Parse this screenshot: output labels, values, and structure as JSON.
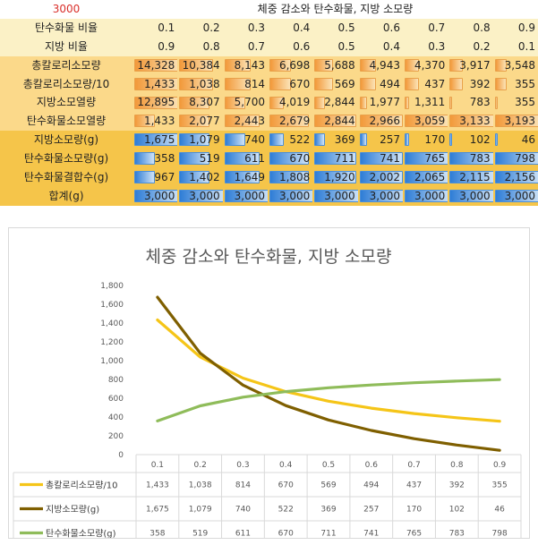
{
  "sheet": {
    "a1_value": "3000",
    "title": "체중 감소와 탄수화물, 지방 소모량",
    "columns": [
      "0.1",
      "0.2",
      "0.3",
      "0.4",
      "0.5",
      "0.6",
      "0.7",
      "0.8",
      "0.9"
    ],
    "rows": [
      {
        "label": "탄수화물 비율",
        "style": "ratio",
        "bars": "none",
        "cells": [
          "0.1",
          "0.2",
          "0.3",
          "0.4",
          "0.5",
          "0.6",
          "0.7",
          "0.8",
          "0.9"
        ]
      },
      {
        "label": "지방 비율",
        "style": "ratio",
        "bars": "none",
        "cells": [
          "0.9",
          "0.8",
          "0.7",
          "0.6",
          "0.5",
          "0.4",
          "0.3",
          "0.2",
          "0.1"
        ]
      },
      {
        "label": "총칼로리소모량",
        "style": "cal",
        "bars": "orange",
        "cells": [
          "14,328",
          "10,384",
          "8,143",
          "6,698",
          "5,688",
          "4,943",
          "4,370",
          "3,917",
          "3,548"
        ],
        "values": [
          14328,
          10384,
          8143,
          6698,
          5688,
          4943,
          4370,
          3917,
          3548
        ]
      },
      {
        "label": "총칼로리소모량/10",
        "style": "cal",
        "bars": "orange",
        "cells": [
          "1,433",
          "1,038",
          "814",
          "670",
          "569",
          "494",
          "437",
          "392",
          "355"
        ],
        "values": [
          1433,
          1038,
          814,
          670,
          569,
          494,
          437,
          392,
          355
        ]
      },
      {
        "label": "지방소모열량",
        "style": "cal",
        "bars": "orange",
        "cells": [
          "12,895",
          "8,307",
          "5,700",
          "4,019",
          "2,844",
          "1,977",
          "1,311",
          "783",
          "355"
        ],
        "values": [
          12895,
          8307,
          5700,
          4019,
          2844,
          1977,
          1311,
          783,
          355
        ]
      },
      {
        "label": "탄수화물소모열량",
        "style": "cal",
        "bars": "orange",
        "cells": [
          "1,433",
          "2,077",
          "2,443",
          "2,679",
          "2,844",
          "2,966",
          "3,059",
          "3,133",
          "3,193"
        ],
        "values": [
          1433,
          2077,
          2443,
          2679,
          2844,
          2966,
          3059,
          3133,
          3193
        ]
      },
      {
        "label": "지방소모량(g)",
        "style": "g",
        "bars": "blue",
        "cells": [
          "1,675",
          "1,079",
          "740",
          "522",
          "369",
          "257",
          "170",
          "102",
          "46"
        ],
        "values": [
          1675,
          1079,
          740,
          522,
          369,
          257,
          170,
          102,
          46
        ]
      },
      {
        "label": "탄수화물소모량(g)",
        "style": "g",
        "bars": "blue",
        "cells": [
          "358",
          "519",
          "611",
          "670",
          "711",
          "741",
          "765",
          "783",
          "798"
        ],
        "values": [
          358,
          519,
          611,
          670,
          711,
          741,
          765,
          783,
          798
        ]
      },
      {
        "label": "탄수화물결합수(g)",
        "style": "g",
        "bars": "blue",
        "cells": [
          "967",
          "1,402",
          "1,649",
          "1,808",
          "1,920",
          "2,002",
          "2,065",
          "2,115",
          "2,156"
        ],
        "values": [
          967,
          1402,
          1649,
          1808,
          1920,
          2002,
          2065,
          2115,
          2156
        ]
      },
      {
        "label": "합계(g)",
        "style": "g",
        "bars": "blue",
        "cells": [
          "3,000",
          "3,000",
          "3,000",
          "3,000",
          "3,000",
          "3,000",
          "3,000",
          "3,000",
          "3,000"
        ],
        "values": [
          3000,
          3000,
          3000,
          3000,
          3000,
          3000,
          3000,
          3000,
          3000
        ]
      }
    ]
  },
  "chart_data": {
    "type": "line",
    "title": "체중 감소와 탄수화물, 지방 소모량",
    "x": [
      "0.1",
      "0.2",
      "0.3",
      "0.4",
      "0.5",
      "0.6",
      "0.7",
      "0.8",
      "0.9"
    ],
    "ylim": [
      0,
      1800
    ],
    "yticks": [
      "0",
      "200",
      "400",
      "600",
      "800",
      "1,000",
      "1,200",
      "1,400",
      "1,600",
      "1,800"
    ],
    "grid": false,
    "legend": "data-table",
    "series": [
      {
        "name": "총칼로리소모량/10",
        "color": "#f5c518",
        "values": [
          1433,
          1038,
          814,
          670,
          569,
          494,
          437,
          392,
          355
        ],
        "labels": [
          "1,433",
          "1,038",
          "814",
          "670",
          "569",
          "494",
          "437",
          "392",
          "355"
        ]
      },
      {
        "name": "지방소모량(g)",
        "color": "#7f5f00",
        "values": [
          1675,
          1079,
          740,
          522,
          369,
          257,
          170,
          102,
          46
        ],
        "labels": [
          "1,675",
          "1,079",
          "740",
          "522",
          "369",
          "257",
          "170",
          "102",
          "46"
        ]
      },
      {
        "name": "탄수화물소모량(g)",
        "color": "#8fbc5a",
        "values": [
          358,
          519,
          611,
          670,
          711,
          741,
          765,
          783,
          798
        ],
        "labels": [
          "358",
          "519",
          "611",
          "670",
          "711",
          "741",
          "765",
          "783",
          "798"
        ]
      }
    ]
  }
}
